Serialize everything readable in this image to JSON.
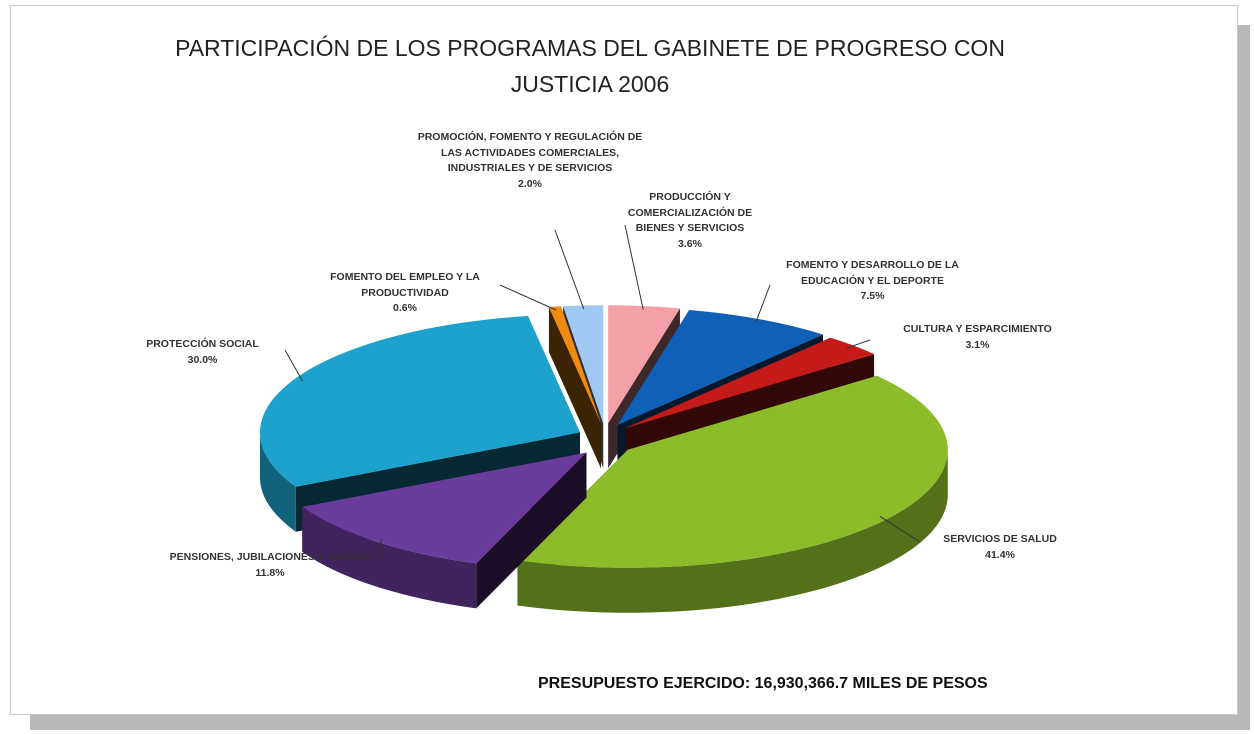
{
  "chart_data": {
    "type": "pie3d",
    "title": "PARTICIPACIÓN DE LOS PROGRAMAS DEL GABINETE DE PROGRESO CON JUSTICIA 2006",
    "categories": [
      "PRODUCCIÓN Y COMERCIALIZACIÓN DE BIENES Y SERVICIOS",
      "FOMENTO Y DESARROLLO DE LA EDUCACIÓN Y EL DEPORTE",
      "CULTURA Y ESPARCIMIENTO",
      "SERVICIOS DE SALUD",
      "PENSIONES, JUBILACIONES Y AYUDAS",
      "PROTECCIÓN SOCIAL",
      "FOMENTO DEL EMPLEO Y LA PRODUCTIVIDAD",
      "PROMOCIÓN, FOMENTO Y REGULACIÓN DE LAS ACTIVIDADES COMERCIALES, INDUSTRIALES Y DE SERVICIOS"
    ],
    "values": [
      3.6,
      7.5,
      3.1,
      41.4,
      11.8,
      30.0,
      0.6,
      2.0
    ],
    "value_labels": [
      "3.6%",
      "7.5%",
      "3.1%",
      "41.4%",
      "11.8%",
      "30.0%",
      "0.6%",
      "2.0%"
    ],
    "colors": [
      "#f4a0a8",
      "#1060b8",
      "#c41a1a",
      "#8cbc2a",
      "#6a3c9c",
      "#1ca2cc",
      "#f08a10",
      "#a0c8f0"
    ],
    "footnote": "PRESUPUESTO EJERCIDO: 16,930,366.7 MILES DE PESOS"
  }
}
